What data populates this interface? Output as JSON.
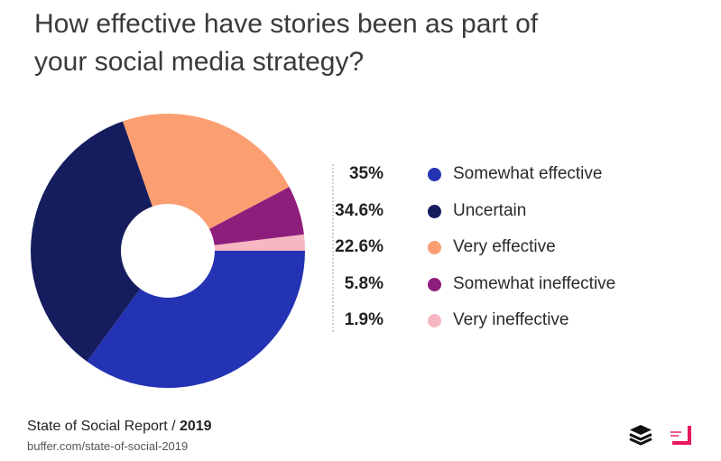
{
  "title": "How effective have stories been as part of your social media strategy?",
  "colors": {
    "somewhat_effective": "#2433b3",
    "uncertain": "#151d5e",
    "very_effective": "#fb9f72",
    "somewhat_ineffective": "#8e1e7c",
    "very_ineffective": "#f6b7c3"
  },
  "chart_data": {
    "type": "pie",
    "donut": true,
    "categories": [
      "Somewhat effective",
      "Uncertain",
      "Very effective",
      "Somewhat ineffective",
      "Very ineffective"
    ],
    "values": [
      35,
      34.6,
      22.6,
      5.8,
      1.9
    ],
    "value_labels": [
      "35%",
      "34.6%",
      "22.6%",
      "5.8%",
      "1.9%"
    ],
    "legend_position": "right"
  },
  "footer": {
    "report": "State of Social Report / ",
    "year": "2019",
    "url": "buffer.com/state-of-social-2019"
  },
  "icons": [
    "buffer-layers-icon",
    "brand-logo-icon"
  ]
}
